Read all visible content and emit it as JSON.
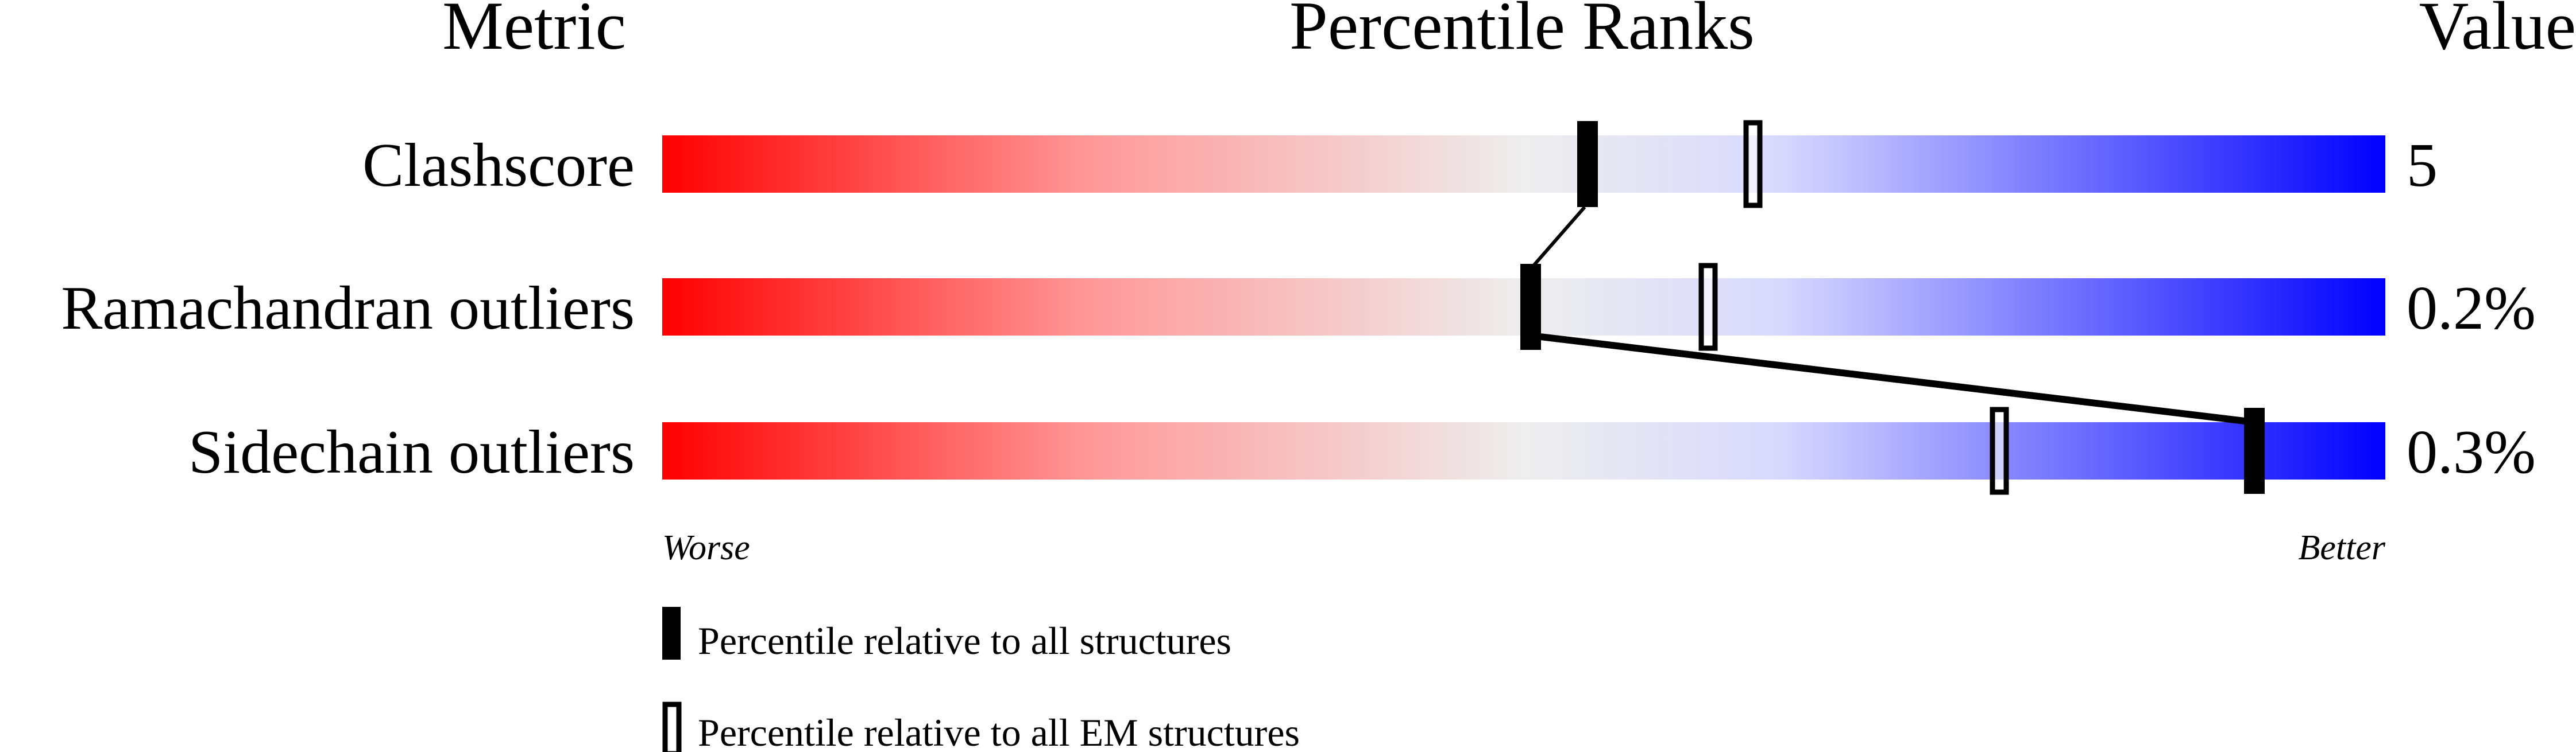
{
  "chart_data": {
    "type": "percentile-bar",
    "headers": {
      "metric": "Metric",
      "ranks": "Percentile Ranks",
      "value": "Value"
    },
    "xlim": [
      0,
      100
    ],
    "axis_labels": {
      "left": "Worse",
      "right": "Better"
    },
    "gradient_colors": [
      "#ff0000",
      "#eeeeee",
      "#d8d8ff",
      "#0000ff"
    ],
    "rows": [
      {
        "metric": "Clashscore",
        "value": "5",
        "percentile_all": 53.7,
        "percentile_em": 63.3
      },
      {
        "metric": "Ramachandran outliers",
        "value": "0.2%",
        "percentile_all": 50.4,
        "percentile_em": 60.7
      },
      {
        "metric": "Sidechain outliers",
        "value": "0.3%",
        "percentile_all": 92.4,
        "percentile_em": 77.6
      }
    ],
    "legend": [
      {
        "marker": "filled",
        "label": "Percentile relative to all structures"
      },
      {
        "marker": "open",
        "label": "Percentile relative to all EM structures"
      }
    ]
  }
}
